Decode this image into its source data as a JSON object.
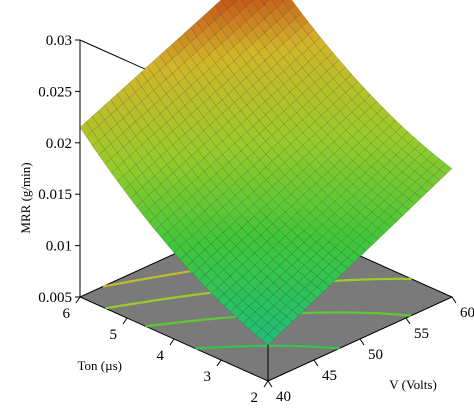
{
  "chart_data": {
    "type": "surface3d",
    "title": "",
    "zlabel": "MRR (g/min)",
    "xlabel": "V (Volts)",
    "ylabel": "Ton (µs)",
    "x_range": [
      40,
      60
    ],
    "y_range": [
      2,
      6
    ],
    "z_range": [
      0.005,
      0.03
    ],
    "z_ticks": [
      "0.005",
      "0.01",
      "0.015",
      "0.02",
      "0.025",
      "0.03"
    ],
    "x_ticks": [
      "40",
      "45",
      "50",
      "55",
      "60"
    ],
    "y_ticks": [
      "2",
      "3",
      "4",
      "5",
      "6"
    ],
    "surface_corners": [
      {
        "V": 60,
        "Ton": 6,
        "MRR": 0.0295
      },
      {
        "V": 40,
        "Ton": 6,
        "MRR": 0.0215
      },
      {
        "V": 40,
        "Ton": 2,
        "MRR": 0.0085
      },
      {
        "V": 60,
        "Ton": 2,
        "MRR": 0.0175
      }
    ],
    "contour_lines": 5,
    "colormap": [
      "#1fbf7a",
      "#3fc63a",
      "#9acb2a",
      "#d2b62a",
      "#c01f0f"
    ],
    "floor_color": "#7a7a7a"
  }
}
